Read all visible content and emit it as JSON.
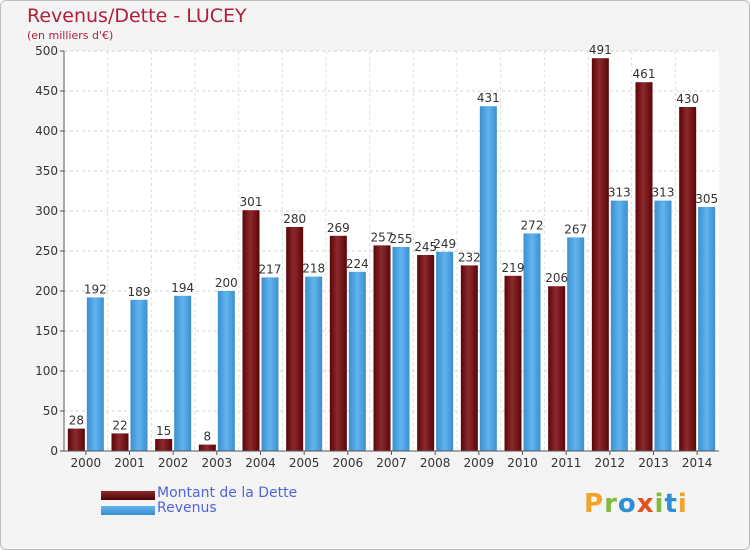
{
  "title": "Revenus/Dette - LUCEY",
  "subtitle": "(en milliers d'€)",
  "logo": "Proxiti",
  "colors": {
    "dette": "#7a0f14",
    "revenus": "#4aa3e4",
    "title": "#b01e3a",
    "legend_text": "#4f64d8"
  },
  "chart_data": {
    "type": "bar",
    "categories": [
      "2000",
      "2001",
      "2002",
      "2003",
      "2004",
      "2005",
      "2006",
      "2007",
      "2008",
      "2009",
      "2010",
      "2011",
      "2012",
      "2013",
      "2014"
    ],
    "series": [
      {
        "name": "Montant de la Dette",
        "values": [
          28,
          22,
          15,
          8,
          301,
          280,
          269,
          257,
          245,
          232,
          219,
          206,
          491,
          461,
          430
        ]
      },
      {
        "name": "Revenus",
        "values": [
          192,
          189,
          194,
          200,
          217,
          218,
          224,
          255,
          249,
          431,
          272,
          267,
          313,
          313,
          305
        ]
      }
    ],
    "yticks": [
      0,
      50,
      100,
      150,
      200,
      250,
      300,
      350,
      400,
      450,
      500
    ],
    "ylim": [
      0,
      500
    ],
    "grid": true,
    "legend": "bottom-left",
    "data_labels": true
  }
}
